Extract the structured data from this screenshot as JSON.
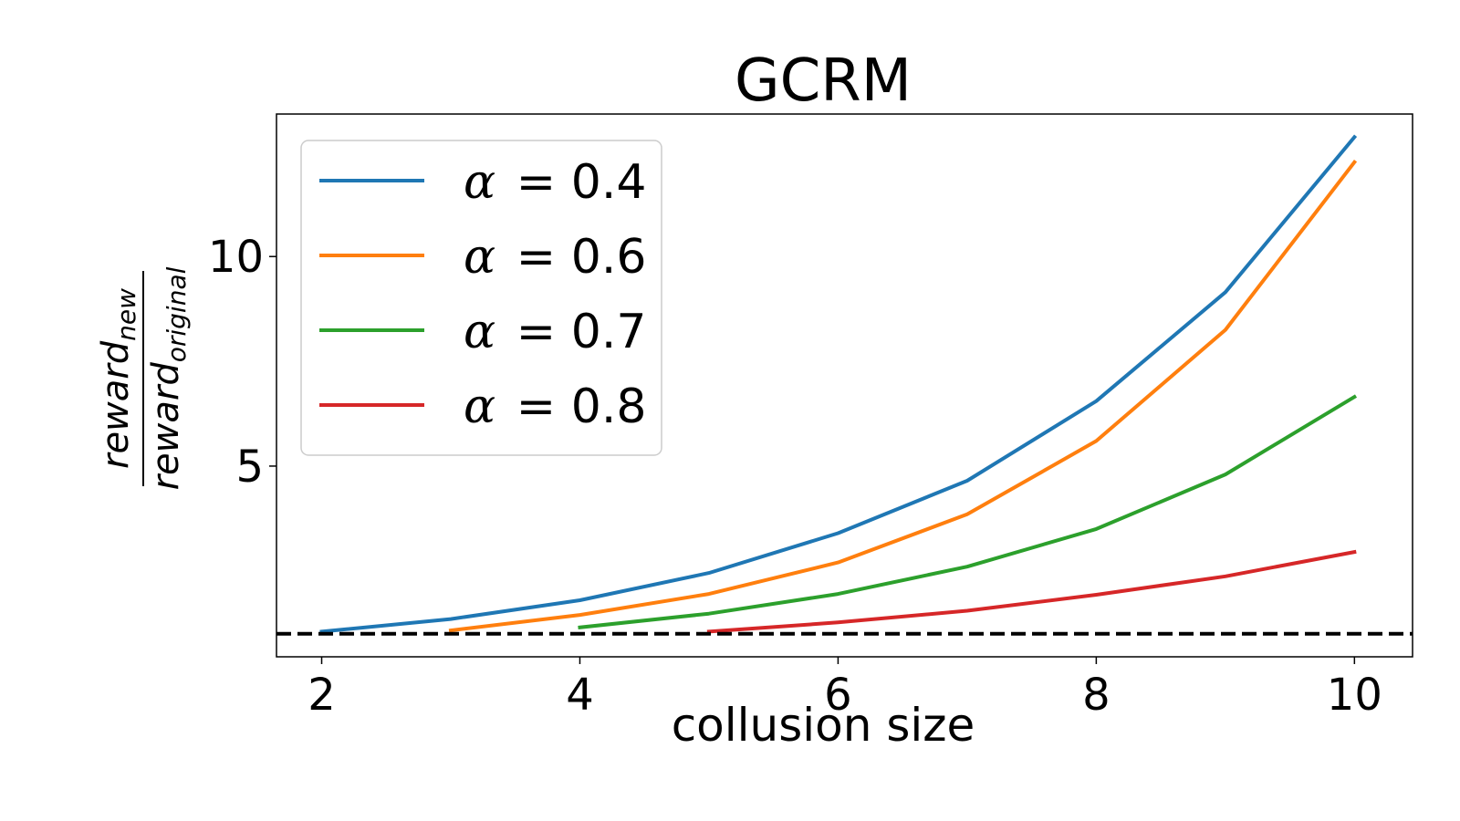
{
  "chart_data": {
    "type": "line",
    "title": "GCRM",
    "xlabel": "collusion size",
    "ylabel_numerator": "reward",
    "ylabel_numerator_sub": "new",
    "ylabel_denominator": "reward",
    "ylabel_denominator_sub": "original",
    "xlim": [
      1.65,
      10.45
    ],
    "ylim": [
      0.45,
      13.4
    ],
    "xticks": [
      2,
      4,
      6,
      8,
      10
    ],
    "yticks": [
      5,
      10
    ],
    "grid": false,
    "legend_position": "top-left",
    "reference_line": {
      "y": 1.0,
      "style": "dashed",
      "color": "#000000"
    },
    "series": [
      {
        "name": "α = 0.4",
        "symbol": "α",
        "value_text": "= 0.4",
        "color": "#1f77b4",
        "x": [
          2,
          3,
          4,
          5,
          6,
          7,
          8,
          9,
          10
        ],
        "y": [
          1.05,
          1.35,
          1.8,
          2.45,
          3.4,
          4.65,
          6.55,
          9.15,
          12.85
        ]
      },
      {
        "name": "α = 0.6",
        "symbol": "α",
        "value_text": "= 0.6",
        "color": "#ff7f0e",
        "x": [
          3,
          4,
          5,
          6,
          7,
          8,
          9,
          10
        ],
        "y": [
          1.08,
          1.45,
          1.95,
          2.7,
          3.85,
          5.6,
          8.25,
          12.25
        ]
      },
      {
        "name": "α = 0.7",
        "symbol": "α",
        "value_text": "= 0.7",
        "color": "#2ca02c",
        "x": [
          4,
          5,
          6,
          7,
          8,
          9,
          10
        ],
        "y": [
          1.15,
          1.48,
          1.95,
          2.6,
          3.5,
          4.8,
          6.65
        ]
      },
      {
        "name": "α = 0.8",
        "symbol": "α",
        "value_text": "= 0.8",
        "color": "#d62728",
        "x": [
          5,
          6,
          7,
          8,
          9,
          10
        ],
        "y": [
          1.05,
          1.27,
          1.55,
          1.93,
          2.37,
          2.95
        ]
      }
    ]
  }
}
